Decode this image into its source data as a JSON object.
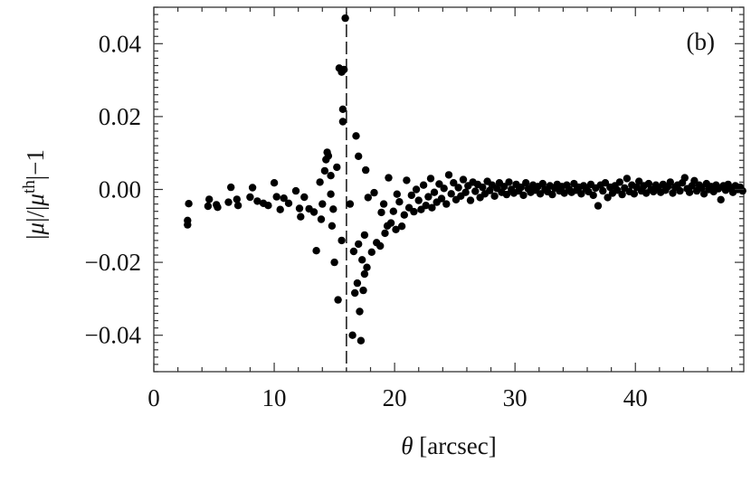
{
  "chart_data": {
    "type": "scatter",
    "panel_label": "(b)",
    "xlabel": {
      "symbol": "θ",
      "unit": " [arcsec]"
    },
    "ylabel": {
      "bar": "|",
      "mu": "μ",
      "sup": "th",
      "tail": "|−1"
    },
    "xlim": [
      0,
      49
    ],
    "ylim": [
      -0.05,
      0.05
    ],
    "x_ticks": [
      {
        "v": 0,
        "label": "0"
      },
      {
        "v": 10,
        "label": "10"
      },
      {
        "v": 20,
        "label": "20"
      },
      {
        "v": 30,
        "label": "30"
      },
      {
        "v": 40,
        "label": "40"
      }
    ],
    "y_ticks": [
      {
        "v": -0.04,
        "label": "−0.04"
      },
      {
        "v": -0.02,
        "label": "−0.02"
      },
      {
        "v": 0,
        "label": "0.00"
      },
      {
        "v": 0.02,
        "label": "0.02"
      },
      {
        "v": 0.04,
        "label": "0.04"
      }
    ],
    "vertical_line_x": 16,
    "grid": false,
    "points": [
      [
        2.8,
        -0.0085
      ],
      [
        2.8,
        -0.0097
      ],
      [
        2.9,
        -0.0039
      ],
      [
        4.5,
        -0.0046
      ],
      [
        4.6,
        -0.0027
      ],
      [
        5.2,
        -0.0042
      ],
      [
        5.3,
        -0.0049
      ],
      [
        6.2,
        -0.0035
      ],
      [
        6.4,
        0.0006
      ],
      [
        6.9,
        -0.0027
      ],
      [
        7.0,
        -0.0044
      ],
      [
        8.0,
        -0.0021
      ],
      [
        8.2,
        0.0005
      ],
      [
        8.6,
        -0.0032
      ],
      [
        9.1,
        -0.0038
      ],
      [
        9.5,
        -0.0044
      ],
      [
        10.0,
        0.0018
      ],
      [
        10.2,
        -0.002
      ],
      [
        10.5,
        -0.0055
      ],
      [
        10.8,
        -0.0024
      ],
      [
        11.2,
        -0.0038
      ],
      [
        11.8,
        -0.0004
      ],
      [
        12.1,
        -0.0052
      ],
      [
        12.2,
        -0.0075
      ],
      [
        12.5,
        -0.0021
      ],
      [
        12.9,
        -0.0053
      ],
      [
        13.3,
        -0.0062
      ],
      [
        13.5,
        -0.0168
      ],
      [
        13.8,
        0.002
      ],
      [
        13.9,
        -0.0082
      ],
      [
        14.0,
        -0.004
      ],
      [
        14.2,
        0.0051
      ],
      [
        14.3,
        0.0082
      ],
      [
        14.4,
        0.0102
      ],
      [
        14.5,
        0.0092
      ],
      [
        14.7,
        -0.0013
      ],
      [
        14.7,
        0.0038
      ],
      [
        14.8,
        -0.01
      ],
      [
        14.9,
        -0.0054
      ],
      [
        15.0,
        -0.02
      ],
      [
        15.2,
        0.0061
      ],
      [
        15.3,
        -0.0303
      ],
      [
        15.4,
        0.0333
      ],
      [
        15.6,
        -0.014
      ],
      [
        15.6,
        0.0322
      ],
      [
        15.7,
        0.0186
      ],
      [
        15.7,
        0.022
      ],
      [
        15.8,
        0.0329
      ],
      [
        15.9,
        0.047
      ],
      [
        16.3,
        -0.004
      ],
      [
        16.5,
        -0.04
      ],
      [
        16.6,
        -0.017
      ],
      [
        16.7,
        -0.0284
      ],
      [
        16.8,
        0.0147
      ],
      [
        16.9,
        -0.0257
      ],
      [
        17.0,
        -0.015
      ],
      [
        17.0,
        0.0091
      ],
      [
        17.1,
        -0.0335
      ],
      [
        17.2,
        -0.0415
      ],
      [
        17.3,
        -0.0193
      ],
      [
        17.4,
        -0.0277
      ],
      [
        17.5,
        -0.0125
      ],
      [
        17.5,
        -0.0232
      ],
      [
        17.6,
        0.0053
      ],
      [
        17.7,
        -0.0214
      ],
      [
        17.8,
        -0.0022
      ],
      [
        18.1,
        -0.0172
      ],
      [
        18.3,
        -0.0009
      ],
      [
        18.5,
        -0.0146
      ],
      [
        18.8,
        -0.0155
      ],
      [
        18.9,
        -0.0063
      ],
      [
        19.1,
        -0.004
      ],
      [
        19.2,
        -0.012
      ],
      [
        19.4,
        -0.01
      ],
      [
        19.5,
        0.0032
      ],
      [
        19.7,
        -0.0092
      ],
      [
        19.9,
        -0.006
      ],
      [
        20.1,
        -0.011
      ],
      [
        20.2,
        -0.0013
      ],
      [
        20.4,
        -0.0034
      ],
      [
        20.6,
        -0.0101
      ],
      [
        20.8,
        -0.007
      ],
      [
        21.0,
        0.0025
      ],
      [
        21.2,
        -0.005
      ],
      [
        21.4,
        -0.0016
      ],
      [
        21.6,
        -0.0061
      ],
      [
        21.8,
        0.0
      ],
      [
        22.0,
        -0.003
      ],
      [
        22.2,
        -0.0055
      ],
      [
        22.4,
        0.0012
      ],
      [
        22.6,
        -0.0044
      ],
      [
        22.8,
        -0.002
      ],
      [
        23.0,
        0.003
      ],
      [
        23.1,
        -0.005
      ],
      [
        23.3,
        -0.0008
      ],
      [
        23.5,
        -0.0035
      ],
      [
        23.7,
        0.0015
      ],
      [
        23.9,
        -0.0025
      ],
      [
        24.1,
        0.0003
      ],
      [
        24.3,
        -0.004
      ],
      [
        24.5,
        0.004
      ],
      [
        24.7,
        -0.0012
      ],
      [
        24.9,
        0.0018
      ],
      [
        25.1,
        -0.0028
      ],
      [
        25.3,
        0.0005
      ],
      [
        25.5,
        -0.0018
      ],
      [
        25.7,
        0.0027
      ],
      [
        25.9,
        -0.0008
      ],
      [
        26.1,
        0.001
      ],
      [
        26.3,
        -0.003
      ],
      [
        26.5,
        0.002
      ],
      [
        26.7,
        -0.0005
      ],
      [
        26.9,
        0.0014
      ],
      [
        27.1,
        -0.0022
      ],
      [
        27.3,
        0.0006
      ],
      [
        27.5,
        -0.0012
      ],
      [
        27.7,
        0.0022
      ],
      [
        27.9,
        -0.0003
      ],
      [
        28.1,
        0.0012
      ],
      [
        28.3,
        -0.0018
      ],
      [
        28.5,
        0.0003
      ],
      [
        28.7,
        0.0018
      ],
      [
        28.9,
        -0.0008
      ],
      [
        29.1,
        0.0008
      ],
      [
        29.3,
        -0.0014
      ],
      [
        29.5,
        0.002
      ],
      [
        29.7,
        0.0
      ],
      [
        29.9,
        -0.001
      ],
      [
        30.1,
        0.0014
      ],
      [
        30.3,
        -0.0004
      ],
      [
        30.5,
        0.0006
      ],
      [
        30.7,
        -0.0016
      ],
      [
        30.9,
        0.0018
      ],
      [
        31.1,
        0.0002
      ],
      [
        31.3,
        -0.0008
      ],
      [
        31.5,
        0.0012
      ],
      [
        31.7,
        -0.0002
      ],
      [
        31.9,
        0.0008
      ],
      [
        32.1,
        -0.0012
      ],
      [
        32.3,
        0.0016
      ],
      [
        32.5,
        0.0
      ],
      [
        32.7,
        -0.0006
      ],
      [
        32.9,
        0.001
      ],
      [
        33.1,
        -0.0014
      ],
      [
        33.3,
        0.0004
      ],
      [
        33.5,
        0.0014
      ],
      [
        33.7,
        -0.0004
      ],
      [
        33.9,
        0.0008
      ],
      [
        34.1,
        -0.001
      ],
      [
        34.3,
        0.0012
      ],
      [
        34.5,
        0.0
      ],
      [
        34.7,
        -0.0008
      ],
      [
        34.9,
        0.0016
      ],
      [
        35.1,
        -0.0002
      ],
      [
        35.3,
        0.0006
      ],
      [
        35.5,
        -0.0012
      ],
      [
        35.7,
        0.001
      ],
      [
        35.9,
        0.0002
      ],
      [
        36.1,
        -0.0006
      ],
      [
        36.3,
        0.0014
      ],
      [
        36.5,
        -0.0016
      ],
      [
        36.7,
        0.0004
      ],
      [
        36.9,
        -0.0045
      ],
      [
        37.1,
        0.0012
      ],
      [
        37.3,
        -0.0004
      ],
      [
        37.5,
        0.0018
      ],
      [
        37.7,
        -0.0022
      ],
      [
        37.9,
        0.0006
      ],
      [
        38.1,
        -0.001
      ],
      [
        38.3,
        0.001
      ],
      [
        38.5,
        -0.0002
      ],
      [
        38.7,
        0.002
      ],
      [
        38.9,
        -0.0014
      ],
      [
        39.1,
        0.0004
      ],
      [
        39.3,
        0.003
      ],
      [
        39.5,
        -0.0006
      ],
      [
        39.7,
        0.0012
      ],
      [
        39.9,
        -0.0012
      ],
      [
        40.1,
        0.0006
      ],
      [
        40.3,
        0.0022
      ],
      [
        40.5,
        -0.0004
      ],
      [
        40.7,
        0.001
      ],
      [
        40.9,
        -0.001
      ],
      [
        41.1,
        0.0016
      ],
      [
        41.3,
        0.0
      ],
      [
        41.5,
        -0.0006
      ],
      [
        41.7,
        0.0012
      ],
      [
        41.9,
        0.0004
      ],
      [
        42.1,
        -0.0008
      ],
      [
        42.3,
        0.0014
      ],
      [
        42.5,
        -0.0002
      ],
      [
        42.7,
        0.0008
      ],
      [
        42.9,
        0.002
      ],
      [
        43.1,
        -0.001
      ],
      [
        43.3,
        0.0006
      ],
      [
        43.5,
        0.0012
      ],
      [
        43.7,
        -0.0004
      ],
      [
        43.9,
        0.0018
      ],
      [
        44.1,
        0.0032
      ],
      [
        44.3,
        0.0002
      ],
      [
        44.5,
        -0.0008
      ],
      [
        44.7,
        0.001
      ],
      [
        44.9,
        0.0024
      ],
      [
        45.1,
        -0.0004
      ],
      [
        45.3,
        0.0012
      ],
      [
        45.5,
        0.0004
      ],
      [
        45.7,
        -0.0012
      ],
      [
        45.9,
        0.0016
      ],
      [
        46.1,
        0.0
      ],
      [
        46.3,
        0.0008
      ],
      [
        46.5,
        -0.0006
      ],
      [
        46.7,
        0.0012
      ],
      [
        46.9,
        0.0002
      ],
      [
        47.1,
        -0.0028
      ],
      [
        47.3,
        0.001
      ],
      [
        47.5,
        -0.0002
      ],
      [
        47.7,
        0.0014
      ],
      [
        47.9,
        0.0004
      ],
      [
        48.1,
        -0.0008
      ],
      [
        48.3,
        0.001
      ],
      [
        48.5,
        0.0
      ],
      [
        48.7,
        0.0006
      ],
      [
        48.9,
        -0.0004
      ]
    ]
  }
}
